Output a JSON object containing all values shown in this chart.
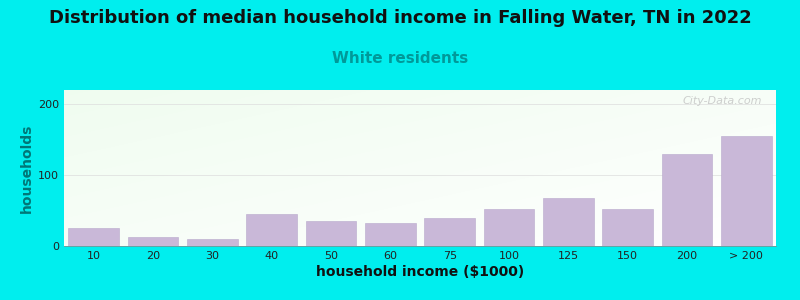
{
  "title": "Distribution of median household income in Falling Water, TN in 2022",
  "subtitle": "White residents",
  "xlabel": "household income ($1000)",
  "ylabel": "households",
  "background_color": "#00EEEE",
  "bar_color": "#c9b8d8",
  "bar_edge_color": "#b8a8cc",
  "categories": [
    "10",
    "20",
    "30",
    "40",
    "50",
    "60",
    "75",
    "100",
    "125",
    "150",
    "200",
    "> 200"
  ],
  "values": [
    25,
    12,
    10,
    45,
    35,
    32,
    40,
    52,
    68,
    52,
    130,
    155
  ],
  "ylim": [
    0,
    220
  ],
  "yticks": [
    0,
    100,
    200
  ],
  "title_fontsize": 13,
  "subtitle_fontsize": 11,
  "subtitle_color": "#009999",
  "axis_label_fontsize": 10,
  "tick_fontsize": 8,
  "watermark": "City-Data.com"
}
